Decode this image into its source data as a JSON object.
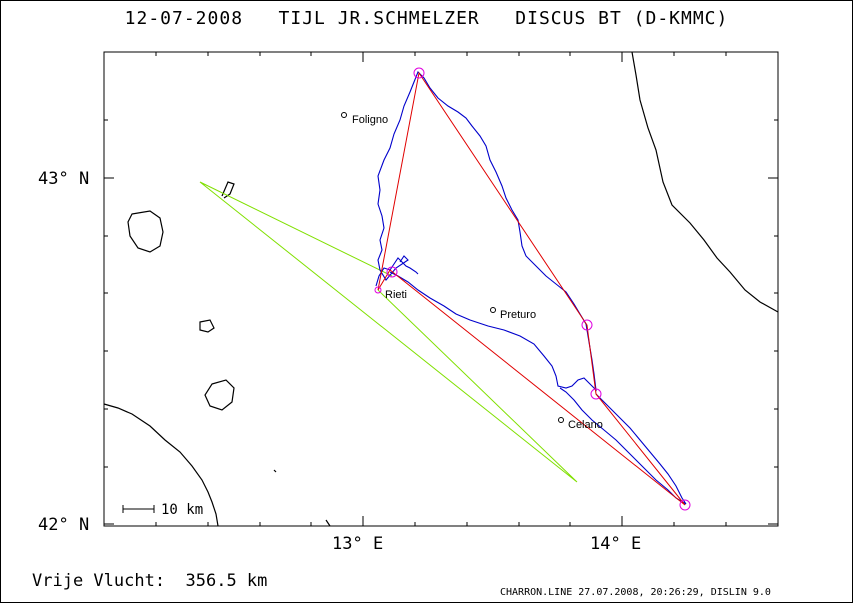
{
  "header": {
    "title": "12-07-2008   TIJL JR.SCHMELZER   DISCUS BT (D-KMMC)"
  },
  "axes": {
    "lat_labels": [
      "43° N",
      "42° N"
    ],
    "lon_labels": [
      "13° E",
      "14° E"
    ]
  },
  "scale_bar": {
    "label": "10 km"
  },
  "towns": [
    {
      "name": "Foligno"
    },
    {
      "name": "Rieti"
    },
    {
      "name": "Preturo"
    },
    {
      "name": "Celano"
    }
  ],
  "colors": {
    "track": "#0000cc",
    "task": "#e00000",
    "declared": "#80e000",
    "turnpoint": "#e000e0"
  },
  "footer": {
    "distance": "Vrije Vlucht:  356.5 km",
    "credit": "CHARRON.LINE 27.07.2008, 20:26:29, DISLIN 9.0"
  }
}
